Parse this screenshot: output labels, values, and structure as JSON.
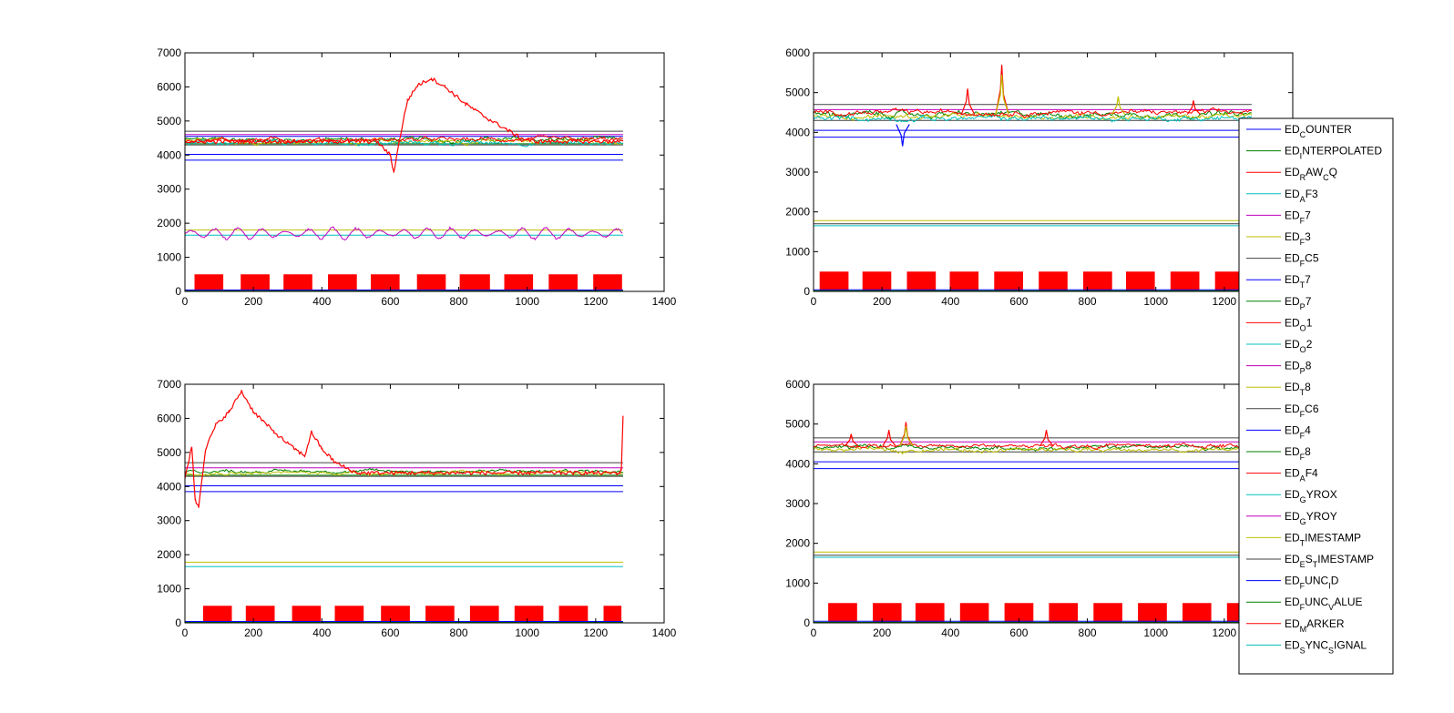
{
  "figure": {
    "background": "#ffffff"
  },
  "legend": {
    "entries": [
      {
        "base": "ED",
        "sub": "C",
        "rest": "OUNTER",
        "color": "#0000ff"
      },
      {
        "base": "ED",
        "sub": "I",
        "rest": "NTERPOLATED",
        "color": "#008000"
      },
      {
        "base": "ED",
        "sub": "R",
        "rest": "AW",
        "sub2": "C",
        "rest2": "Q",
        "color": "#ff0000"
      },
      {
        "base": "ED",
        "sub": "A",
        "rest": "F3",
        "color": "#00bfbf"
      },
      {
        "base": "ED",
        "sub": "F",
        "rest": "7",
        "color": "#bf00bf"
      },
      {
        "base": "ED",
        "sub": "F",
        "rest": "3",
        "color": "#bfbf00"
      },
      {
        "base": "ED",
        "sub": "F",
        "rest": "C5",
        "color": "#404040"
      },
      {
        "base": "ED",
        "sub": "T",
        "rest": "7",
        "color": "#0000ff"
      },
      {
        "base": "ED",
        "sub": "P",
        "rest": "7",
        "color": "#008000"
      },
      {
        "base": "ED",
        "sub": "O",
        "rest": "1",
        "color": "#ff0000"
      },
      {
        "base": "ED",
        "sub": "O",
        "rest": "2",
        "color": "#00bfbf"
      },
      {
        "base": "ED",
        "sub": "P",
        "rest": "8",
        "color": "#bf00bf"
      },
      {
        "base": "ED",
        "sub": "T",
        "rest": "8",
        "color": "#bfbf00"
      },
      {
        "base": "ED",
        "sub": "F",
        "rest": "C6",
        "color": "#404040"
      },
      {
        "base": "ED",
        "sub": "F",
        "rest": "4",
        "color": "#0000ff"
      },
      {
        "base": "ED",
        "sub": "F",
        "rest": "8",
        "color": "#008000"
      },
      {
        "base": "ED",
        "sub": "A",
        "rest": "F4",
        "color": "#ff0000"
      },
      {
        "base": "ED",
        "sub": "G",
        "rest": "YROX",
        "color": "#00bfbf"
      },
      {
        "base": "ED",
        "sub": "G",
        "rest": "YROY",
        "color": "#bf00bf"
      },
      {
        "base": "ED",
        "sub": "T",
        "rest": "IMESTAMP",
        "color": "#bfbf00"
      },
      {
        "base": "ED",
        "sub": "E",
        "rest": "S",
        "sub2": "T",
        "rest2": "IMESTAMP",
        "color": "#404040"
      },
      {
        "base": "ED",
        "sub": "F",
        "rest": "UNC",
        "sub2": "I",
        "rest2": "D",
        "color": "#0000ff"
      },
      {
        "base": "ED",
        "sub": "F",
        "rest": "UNC",
        "sub2": "V",
        "rest2": "ALUE",
        "color": "#008000"
      },
      {
        "base": "ED",
        "sub": "M",
        "rest": "ARKER",
        "color": "#ff0000"
      },
      {
        "base": "ED",
        "sub": "S",
        "rest": "YNC",
        "sub2": "S",
        "rest2": "IGNAL",
        "color": "#00bfbf"
      }
    ]
  },
  "chart_data": [
    {
      "type": "line",
      "panel": "top-left",
      "xlim": [
        0,
        1400
      ],
      "ylim": [
        0,
        7000
      ],
      "xticks": [
        0,
        200,
        400,
        600,
        800,
        1000,
        1200,
        1400
      ],
      "yticks": [
        0,
        1000,
        2000,
        3000,
        4000,
        5000,
        6000,
        7000
      ],
      "x_end": 1280,
      "flat_lines": [
        {
          "value": 4700,
          "color": "#404040"
        },
        {
          "value": 4600,
          "color": "#bf00bf"
        },
        {
          "value": 4550,
          "color": "#0000ff"
        },
        {
          "value": 4330,
          "color": "#008000"
        },
        {
          "value": 4300,
          "color": "#404040"
        },
        {
          "value": 4020,
          "color": "#0000ff"
        },
        {
          "value": 3850,
          "color": "#0000ff"
        },
        {
          "value": 1800,
          "color": "#bfbf00"
        },
        {
          "value": 1650,
          "color": "#00bfbf"
        }
      ],
      "noisy_lines": [
        {
          "base": 4450,
          "amp": 120,
          "color": "#008000"
        },
        {
          "base": 4400,
          "amp": 110,
          "color": "#bfbf00"
        },
        {
          "base": 4350,
          "amp": 110,
          "color": "#00bfbf"
        },
        {
          "base": 4450,
          "amp": 110,
          "color": "#ff0000"
        }
      ],
      "oscillation": {
        "base": 1700,
        "amp": 200,
        "color": "#bf00bf"
      },
      "drift": {
        "color": "#ff0000",
        "points": [
          [
            0,
            4400
          ],
          [
            560,
            4400
          ],
          [
            600,
            4000
          ],
          [
            610,
            3500
          ],
          [
            630,
            4600
          ],
          [
            650,
            5600
          ],
          [
            680,
            6050
          ],
          [
            720,
            6250
          ],
          [
            760,
            6000
          ],
          [
            820,
            5500
          ],
          [
            880,
            5100
          ],
          [
            940,
            4750
          ],
          [
            980,
            4500
          ],
          [
            1020,
            4400
          ],
          [
            1280,
            4400
          ]
        ]
      },
      "marker": {
        "color": "#ff0000",
        "height": 500,
        "bursts": [
          [
            30,
            110
          ],
          [
            165,
            245
          ],
          [
            290,
            370
          ],
          [
            420,
            500
          ],
          [
            545,
            625
          ],
          [
            680,
            760
          ],
          [
            805,
            890
          ],
          [
            935,
            1015
          ],
          [
            1065,
            1145
          ],
          [
            1195,
            1275
          ]
        ]
      }
    },
    {
      "type": "line",
      "panel": "top-right",
      "xlim": [
        0,
        1400
      ],
      "ylim": [
        0,
        6000
      ],
      "xticks": [
        0,
        200,
        400,
        600,
        800,
        1000,
        1200
      ],
      "yticks": [
        0,
        1000,
        2000,
        3000,
        4000,
        5000,
        6000
      ],
      "x_end": 1280,
      "flat_lines": [
        {
          "value": 4700,
          "color": "#404040"
        },
        {
          "value": 4570,
          "color": "#bf00bf"
        },
        {
          "value": 4300,
          "color": "#404040"
        },
        {
          "value": 4050,
          "color": "#0000ff"
        },
        {
          "value": 3880,
          "color": "#0000ff"
        },
        {
          "value": 1780,
          "color": "#bfbf00"
        },
        {
          "value": 1700,
          "color": "#404040"
        },
        {
          "value": 1650,
          "color": "#00bfbf"
        }
      ],
      "noisy_lines": [
        {
          "base": 4450,
          "amp": 120,
          "color": "#008000"
        },
        {
          "base": 4400,
          "amp": 110,
          "color": "#bfbf00"
        },
        {
          "base": 4350,
          "amp": 110,
          "color": "#00bfbf"
        },
        {
          "base": 4500,
          "amp": 110,
          "color": "#ff0000"
        }
      ],
      "spikes": [
        {
          "x": 450,
          "y": 5100,
          "color": "#ff0000"
        },
        {
          "x": 550,
          "y": 5700,
          "color": "#ff0000"
        },
        {
          "x": 550,
          "y": 5450,
          "color": "#bfbf00"
        },
        {
          "x": 890,
          "y": 4900,
          "color": "#bfbf00"
        },
        {
          "x": 1110,
          "y": 4800,
          "color": "#ff0000"
        },
        {
          "x": 260,
          "y": 3650,
          "color": "#0000ff"
        }
      ],
      "marker": {
        "color": "#ff0000",
        "height": 500,
        "bursts": [
          [
            20,
            100
          ],
          [
            145,
            225
          ],
          [
            275,
            355
          ],
          [
            400,
            480
          ],
          [
            530,
            610
          ],
          [
            660,
            740
          ],
          [
            790,
            870
          ],
          [
            915,
            995
          ],
          [
            1045,
            1125
          ],
          [
            1175,
            1255
          ]
        ]
      }
    },
    {
      "type": "line",
      "panel": "bottom-left",
      "xlim": [
        0,
        1400
      ],
      "ylim": [
        0,
        7000
      ],
      "xticks": [
        0,
        200,
        400,
        600,
        800,
        1000,
        1200,
        1400
      ],
      "yticks": [
        0,
        1000,
        2000,
        3000,
        4000,
        5000,
        6000,
        7000
      ],
      "x_end": 1280,
      "flat_lines": [
        {
          "value": 4700,
          "color": "#404040"
        },
        {
          "value": 4550,
          "color": "#bf00bf"
        },
        {
          "value": 4330,
          "color": "#008000"
        },
        {
          "value": 4300,
          "color": "#404040"
        },
        {
          "value": 4020,
          "color": "#0000ff"
        },
        {
          "value": 3850,
          "color": "#0000ff"
        },
        {
          "value": 1780,
          "color": "#bfbf00"
        },
        {
          "value": 1650,
          "color": "#00bfbf"
        }
      ],
      "noisy_lines": [
        {
          "base": 4450,
          "amp": 80,
          "color": "#008000"
        },
        {
          "base": 4400,
          "amp": 80,
          "color": "#bfbf00"
        }
      ],
      "drift": {
        "color": "#ff0000",
        "points": [
          [
            0,
            4200
          ],
          [
            20,
            5200
          ],
          [
            30,
            3600
          ],
          [
            40,
            3400
          ],
          [
            60,
            5100
          ],
          [
            90,
            5800
          ],
          [
            130,
            6200
          ],
          [
            165,
            6800
          ],
          [
            200,
            6200
          ],
          [
            260,
            5600
          ],
          [
            320,
            5100
          ],
          [
            350,
            4900
          ],
          [
            370,
            5600
          ],
          [
            400,
            5100
          ],
          [
            440,
            4700
          ],
          [
            500,
            4400
          ],
          [
            1270,
            4400
          ],
          [
            1275,
            4500
          ],
          [
            1280,
            6100
          ]
        ]
      },
      "marker": {
        "color": "#ff0000",
        "height": 500,
        "bursts": [
          [
            55,
            135
          ],
          [
            180,
            260
          ],
          [
            315,
            395
          ],
          [
            440,
            520
          ],
          [
            575,
            655
          ],
          [
            705,
            785
          ],
          [
            835,
            915
          ],
          [
            965,
            1045
          ],
          [
            1095,
            1175
          ],
          [
            1225,
            1275
          ]
        ]
      }
    },
    {
      "type": "line",
      "panel": "bottom-right",
      "xlim": [
        0,
        1400
      ],
      "ylim": [
        0,
        6000
      ],
      "xticks": [
        0,
        200,
        400,
        600,
        800,
        1000,
        1200
      ],
      "yticks": [
        0,
        1000,
        2000,
        3000,
        4000,
        5000,
        6000
      ],
      "x_end": 1280,
      "flat_lines": [
        {
          "value": 4650,
          "color": "#404040"
        },
        {
          "value": 4550,
          "color": "#bf00bf"
        },
        {
          "value": 4300,
          "color": "#404040"
        },
        {
          "value": 4050,
          "color": "#0000ff"
        },
        {
          "value": 3880,
          "color": "#0000ff"
        },
        {
          "value": 1780,
          "color": "#bfbf00"
        },
        {
          "value": 1700,
          "color": "#404040"
        },
        {
          "value": 1650,
          "color": "#00bfbf"
        }
      ],
      "noisy_lines": [
        {
          "base": 4400,
          "amp": 90,
          "color": "#008000"
        },
        {
          "base": 4350,
          "amp": 90,
          "color": "#bfbf00"
        },
        {
          "base": 4450,
          "amp": 90,
          "color": "#ff0000"
        }
      ],
      "spikes": [
        {
          "x": 110,
          "y": 4750,
          "color": "#ff0000"
        },
        {
          "x": 220,
          "y": 4850,
          "color": "#ff0000"
        },
        {
          "x": 270,
          "y": 5050,
          "color": "#ff0000"
        },
        {
          "x": 270,
          "y": 4950,
          "color": "#bfbf00"
        },
        {
          "x": 680,
          "y": 4850,
          "color": "#ff0000"
        }
      ],
      "marker": {
        "color": "#ff0000",
        "height": 500,
        "bursts": [
          [
            45,
            125
          ],
          [
            175,
            255
          ],
          [
            300,
            380
          ],
          [
            430,
            510
          ],
          [
            560,
            640
          ],
          [
            690,
            770
          ],
          [
            820,
            900
          ],
          [
            950,
            1030
          ],
          [
            1080,
            1160
          ],
          [
            1210,
            1280
          ]
        ]
      }
    }
  ]
}
